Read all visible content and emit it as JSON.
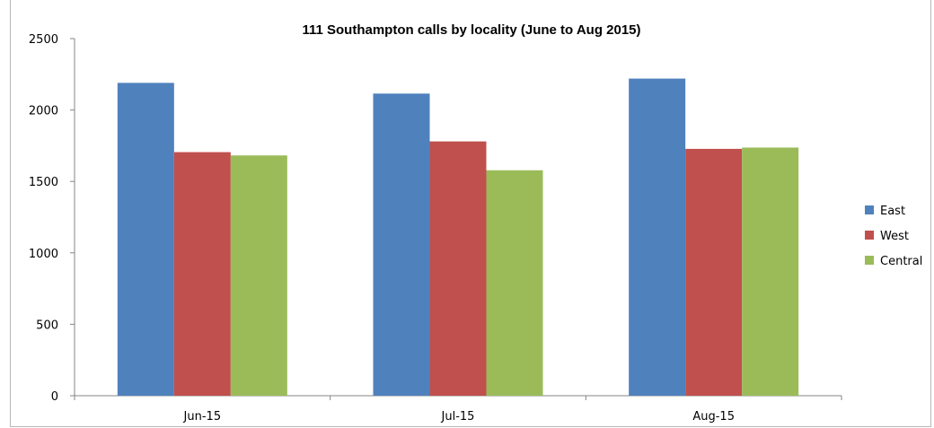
{
  "chart_data": {
    "type": "bar",
    "title": "111 Southampton calls by locality (June to Aug 2015)",
    "xlabel": "",
    "ylabel": "",
    "categories": [
      "Jun-15",
      "Jul-15",
      "Aug-15"
    ],
    "series": [
      {
        "name": "East",
        "color": "#4f81bd",
        "values": [
          2190,
          2115,
          2220
        ]
      },
      {
        "name": "West",
        "color": "#c0504d",
        "values": [
          1705,
          1780,
          1728
        ]
      },
      {
        "name": "Central",
        "color": "#9bbb59",
        "values": [
          1682,
          1578,
          1737
        ]
      }
    ],
    "ylim": [
      0,
      2500
    ],
    "yticks": [
      "0",
      "500",
      "1000",
      "1500",
      "2000",
      "2500"
    ],
    "grid": false,
    "legend_position": "right"
  }
}
